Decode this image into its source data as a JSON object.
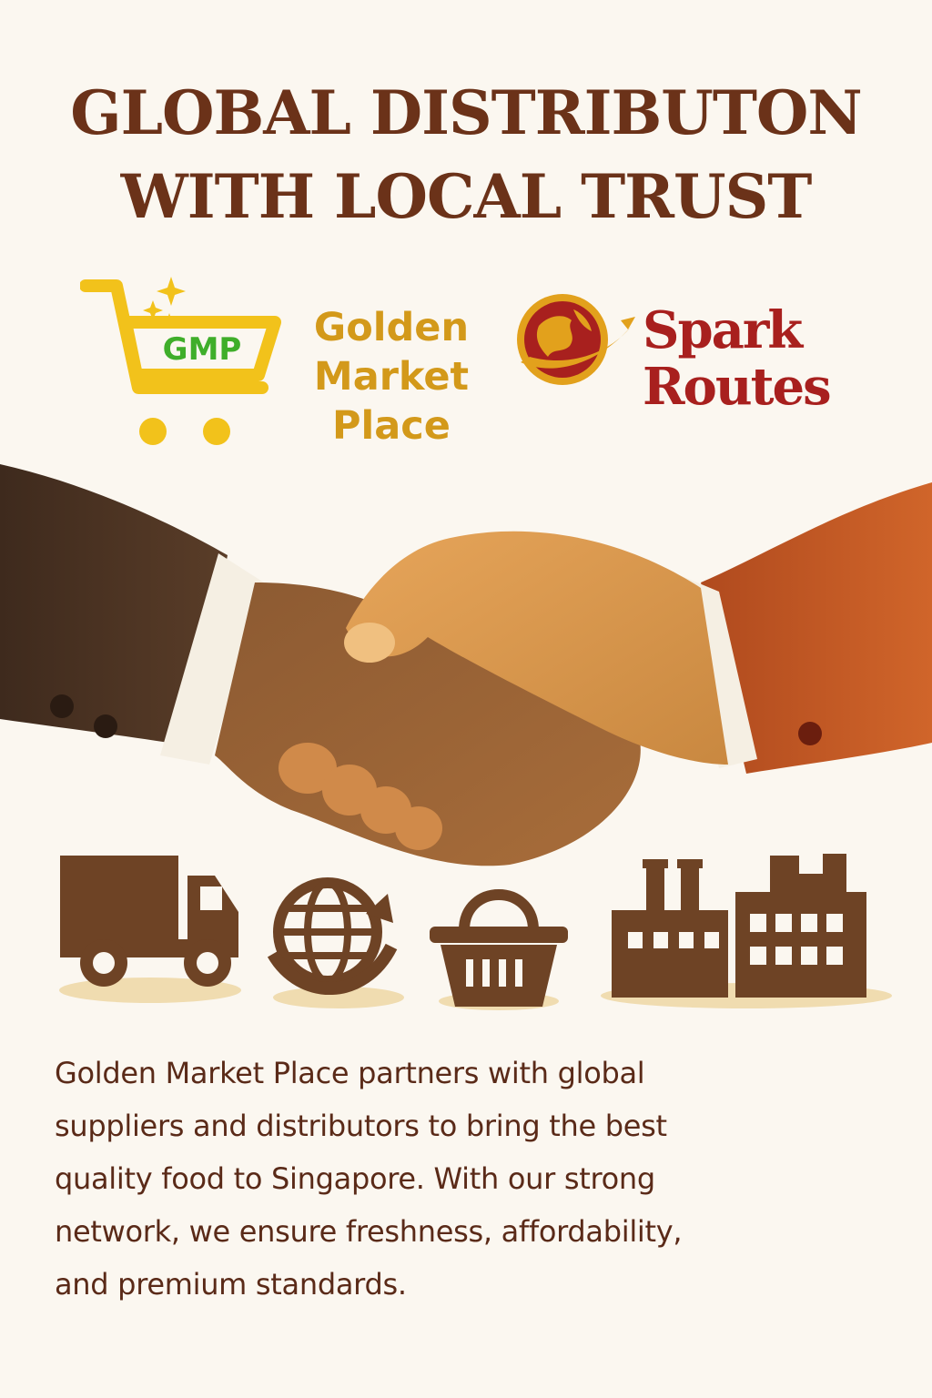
{
  "headline": {
    "line1": "GLOBAL DISTRIBUTON",
    "line2": "WITH LOCAL TRUST"
  },
  "logos": {
    "gmp": {
      "badge": "GMP",
      "name_lines": [
        "Golden",
        "Market",
        "Place"
      ],
      "icon": "shopping-cart-icon",
      "color": "#f2c21b",
      "text_color": "#d3991a",
      "badge_color": "#3fae2a"
    },
    "spark": {
      "name_lines": [
        "Spark",
        "Routes"
      ],
      "icon": "globe-swoosh-icon",
      "color": "#a8201e",
      "accent": "#e2a11c"
    }
  },
  "illustration": {
    "subject": "handshake-illustration",
    "icons": [
      "delivery-truck-icon",
      "globe-icon",
      "shopping-basket-icon",
      "factory-icon"
    ]
  },
  "body": {
    "lines": [
      "Golden Market Place partners with global",
      "suppliers and distributors to bring the best",
      "quality food to Singapore. With our strong",
      "network, we ensure freshness, affordability,",
      "and premium standards."
    ]
  },
  "colors": {
    "background": "#fbf7f0",
    "headline": "#6b3219",
    "icon_brown": "#6e4325",
    "text": "#5a2a18"
  }
}
